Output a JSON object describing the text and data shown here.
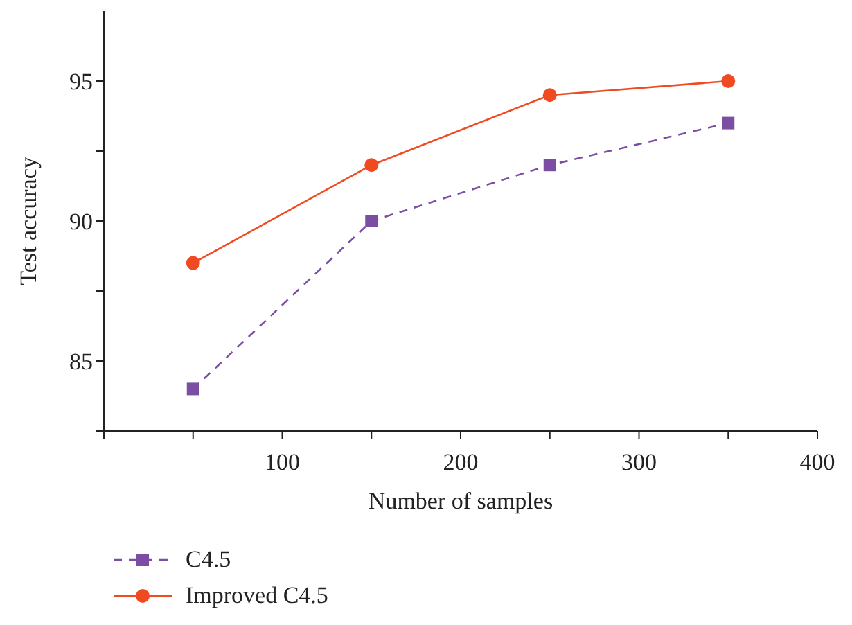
{
  "chart_data": {
    "type": "line",
    "xlabel": "Number of samples",
    "ylabel": "Test accuracy",
    "x": [
      50,
      150,
      250,
      350
    ],
    "series": [
      {
        "name": "C4.5",
        "color": "#7b4ea3",
        "values": [
          84,
          90,
          92,
          93.5
        ],
        "marker": "square",
        "line_style": "dashed"
      },
      {
        "name": "Improved C4.5",
        "color": "#f04a23",
        "values": [
          88.5,
          92,
          94.5,
          95
        ],
        "marker": "circle",
        "line_style": "solid"
      }
    ],
    "xlim": [
      0,
      400
    ],
    "xticks": [
      {
        "value": 0,
        "label": null
      },
      {
        "value": 50,
        "label": null
      },
      100,
      {
        "value": 150,
        "label": null
      },
      200,
      {
        "value": 250,
        "label": null
      },
      300,
      {
        "value": 350,
        "label": null
      },
      400
    ],
    "ylim": [
      82.5,
      97.5
    ],
    "yticks": [
      {
        "value": 82.5,
        "label": null
      },
      85,
      {
        "value": 87.5,
        "label": null
      },
      90,
      {
        "value": 92.5,
        "label": null
      },
      95
    ],
    "grid": false,
    "legend": "bottom left"
  }
}
